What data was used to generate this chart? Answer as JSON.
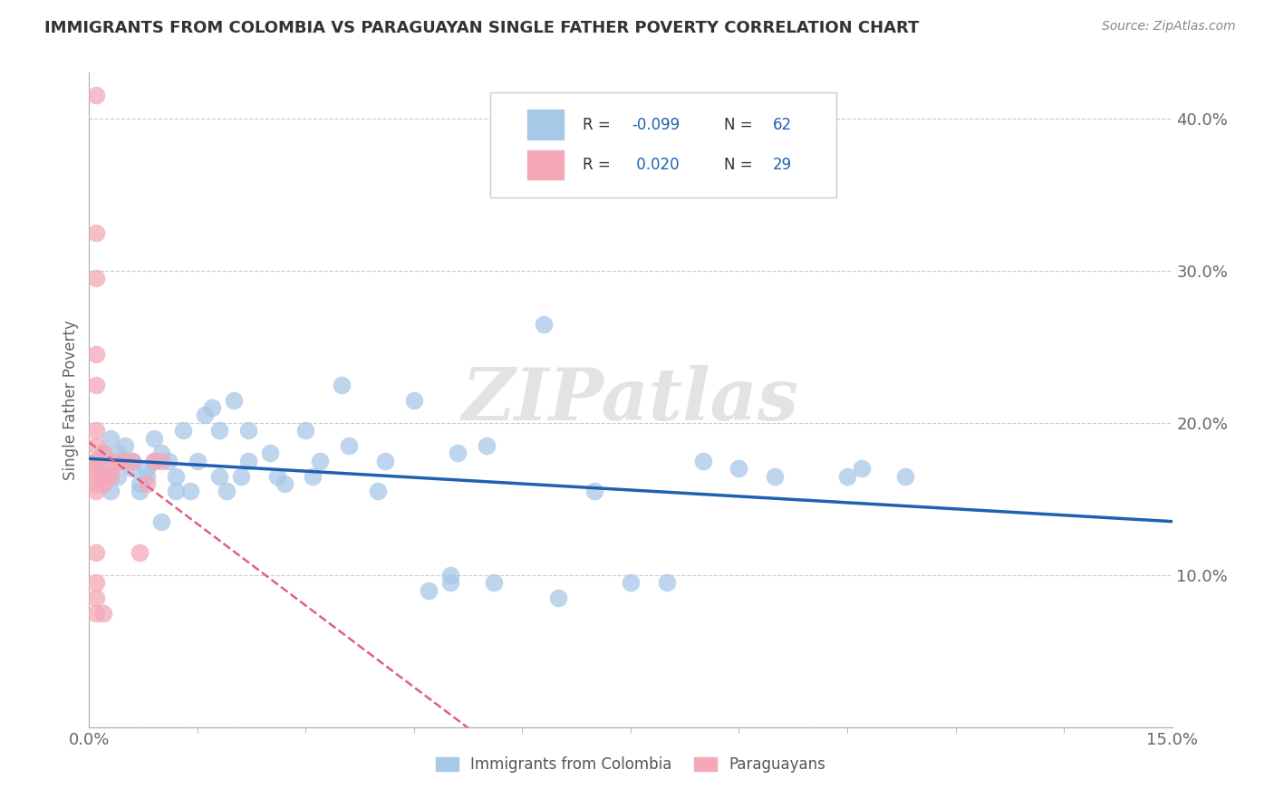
{
  "title": "IMMIGRANTS FROM COLOMBIA VS PARAGUAYAN SINGLE FATHER POVERTY CORRELATION CHART",
  "source": "Source: ZipAtlas.com",
  "ylabel": "Single Father Poverty",
  "x_label_blue": "Immigrants from Colombia",
  "x_label_pink": "Paraguayans",
  "xlim": [
    0.0,
    0.15
  ],
  "ylim": [
    0.0,
    0.43
  ],
  "ytick_vals": [
    0.0,
    0.1,
    0.2,
    0.3,
    0.4
  ],
  "ytick_labels": [
    "",
    "10.0%",
    "20.0%",
    "30.0%",
    "40.0%"
  ],
  "xtick_vals": [
    0.0,
    0.15
  ],
  "xtick_labels": [
    "0.0%",
    "15.0%"
  ],
  "color_blue": "#a8c8e8",
  "color_pink": "#f4a8b8",
  "color_line_blue": "#2060b0",
  "color_line_pink": "#e06080",
  "watermark": "ZIPatlas",
  "background_color": "#ffffff",
  "grid_color": "#cccccc",
  "blue_dots": [
    [
      0.001,
      0.175
    ],
    [
      0.002,
      0.18
    ],
    [
      0.002,
      0.17
    ],
    [
      0.003,
      0.19
    ],
    [
      0.003,
      0.155
    ],
    [
      0.004,
      0.18
    ],
    [
      0.004,
      0.165
    ],
    [
      0.005,
      0.175
    ],
    [
      0.005,
      0.185
    ],
    [
      0.006,
      0.17
    ],
    [
      0.006,
      0.175
    ],
    [
      0.007,
      0.16
    ],
    [
      0.007,
      0.155
    ],
    [
      0.008,
      0.165
    ],
    [
      0.008,
      0.17
    ],
    [
      0.009,
      0.175
    ],
    [
      0.009,
      0.19
    ],
    [
      0.01,
      0.135
    ],
    [
      0.01,
      0.18
    ],
    [
      0.011,
      0.175
    ],
    [
      0.012,
      0.155
    ],
    [
      0.012,
      0.165
    ],
    [
      0.013,
      0.195
    ],
    [
      0.014,
      0.155
    ],
    [
      0.015,
      0.175
    ],
    [
      0.016,
      0.205
    ],
    [
      0.017,
      0.21
    ],
    [
      0.018,
      0.195
    ],
    [
      0.018,
      0.165
    ],
    [
      0.019,
      0.155
    ],
    [
      0.02,
      0.215
    ],
    [
      0.021,
      0.165
    ],
    [
      0.022,
      0.175
    ],
    [
      0.022,
      0.195
    ],
    [
      0.025,
      0.18
    ],
    [
      0.026,
      0.165
    ],
    [
      0.027,
      0.16
    ],
    [
      0.03,
      0.195
    ],
    [
      0.031,
      0.165
    ],
    [
      0.032,
      0.175
    ],
    [
      0.035,
      0.225
    ],
    [
      0.036,
      0.185
    ],
    [
      0.04,
      0.155
    ],
    [
      0.041,
      0.175
    ],
    [
      0.045,
      0.215
    ],
    [
      0.047,
      0.09
    ],
    [
      0.05,
      0.1
    ],
    [
      0.05,
      0.095
    ],
    [
      0.051,
      0.18
    ],
    [
      0.055,
      0.185
    ],
    [
      0.056,
      0.095
    ],
    [
      0.063,
      0.265
    ],
    [
      0.065,
      0.085
    ],
    [
      0.07,
      0.155
    ],
    [
      0.075,
      0.095
    ],
    [
      0.08,
      0.095
    ],
    [
      0.085,
      0.175
    ],
    [
      0.09,
      0.17
    ],
    [
      0.095,
      0.165
    ],
    [
      0.105,
      0.165
    ],
    [
      0.107,
      0.17
    ],
    [
      0.113,
      0.165
    ]
  ],
  "pink_dots": [
    [
      0.001,
      0.415
    ],
    [
      0.001,
      0.325
    ],
    [
      0.001,
      0.295
    ],
    [
      0.001,
      0.245
    ],
    [
      0.001,
      0.225
    ],
    [
      0.001,
      0.195
    ],
    [
      0.001,
      0.185
    ],
    [
      0.001,
      0.175
    ],
    [
      0.001,
      0.17
    ],
    [
      0.001,
      0.165
    ],
    [
      0.001,
      0.16
    ],
    [
      0.001,
      0.155
    ],
    [
      0.001,
      0.115
    ],
    [
      0.001,
      0.095
    ],
    [
      0.001,
      0.085
    ],
    [
      0.001,
      0.075
    ],
    [
      0.002,
      0.18
    ],
    [
      0.002,
      0.165
    ],
    [
      0.002,
      0.16
    ],
    [
      0.002,
      0.075
    ],
    [
      0.003,
      0.165
    ],
    [
      0.003,
      0.17
    ],
    [
      0.004,
      0.175
    ],
    [
      0.005,
      0.175
    ],
    [
      0.006,
      0.175
    ],
    [
      0.007,
      0.115
    ],
    [
      0.008,
      0.16
    ],
    [
      0.009,
      0.175
    ],
    [
      0.01,
      0.175
    ]
  ]
}
